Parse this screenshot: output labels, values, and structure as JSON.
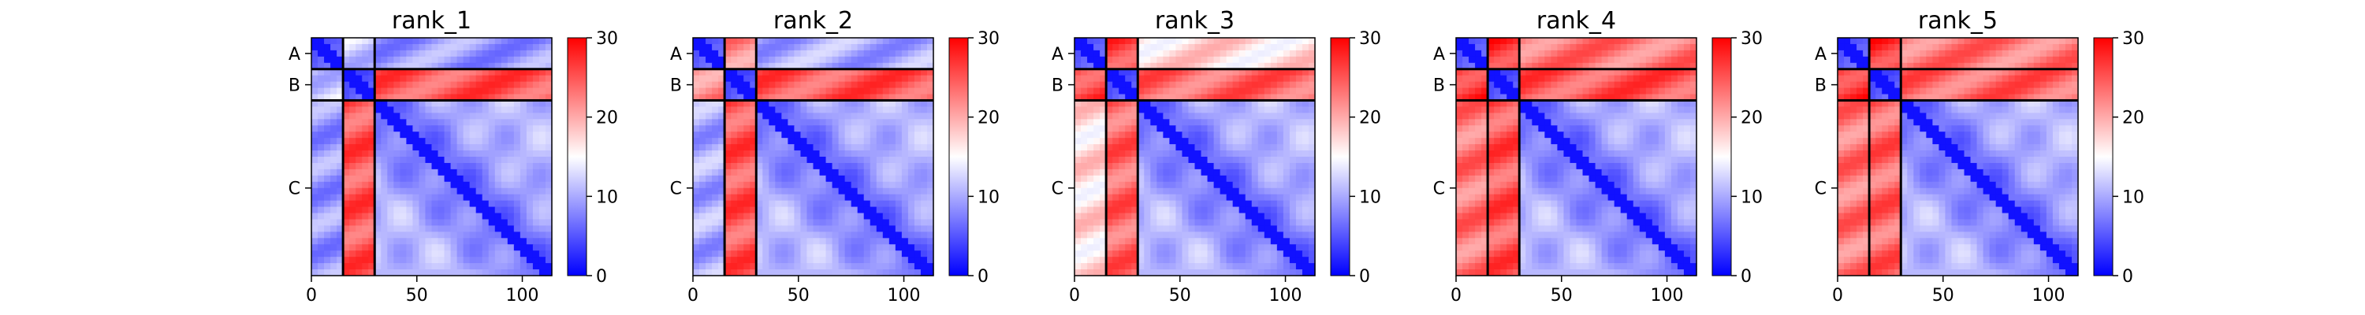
{
  "figure": {
    "panel_titles": [
      "rank_1",
      "rank_2",
      "rank_3",
      "rank_4",
      "rank_5"
    ],
    "chain_labels": [
      "A",
      "B",
      "C"
    ],
    "x_ticks": [
      "0",
      "50",
      "100"
    ],
    "colorbar_ticks": [
      "0",
      "10",
      "20",
      "30"
    ],
    "colormap": {
      "low": "#0000ff",
      "mid": "#ffffff",
      "high": "#ff0000"
    }
  },
  "chart_data": {
    "type": "heatmap",
    "value_range": [
      0,
      30
    ],
    "residue_range": [
      0,
      114
    ],
    "chains": [
      {
        "name": "A",
        "start": 0,
        "end": 15
      },
      {
        "name": "B",
        "start": 15,
        "end": 30
      },
      {
        "name": "C",
        "start": 30,
        "end": 114
      }
    ],
    "panels": [
      {
        "title": "rank_1",
        "intra_A": 4,
        "intra_B": 4,
        "intra_C": 6,
        "A_B": 12,
        "A_C": 9,
        "B_C": 25
      },
      {
        "title": "rank_2",
        "intra_A": 4,
        "intra_B": 4,
        "intra_C": 6,
        "A_B": 22,
        "A_C": 10,
        "B_C": 25
      },
      {
        "title": "rank_3",
        "intra_A": 4,
        "intra_B": 4,
        "intra_C": 6,
        "A_B": 26,
        "A_C": 17,
        "B_C": 24
      },
      {
        "title": "rank_4",
        "intra_A": 4,
        "intra_B": 4,
        "intra_C": 6,
        "A_B": 27,
        "A_C": 23,
        "B_C": 25
      },
      {
        "title": "rank_5",
        "intra_A": 4,
        "intra_B": 4,
        "intra_C": 6,
        "A_B": 27,
        "A_C": 23,
        "B_C": 24
      }
    ]
  }
}
